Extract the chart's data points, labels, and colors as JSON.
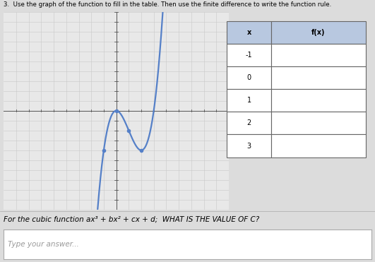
{
  "title": "3.  Use the graph of the function to fill in the table. Then use the finite difference to write the function rule.",
  "question_text": "For the cubic function ax³ + bx² + cx + d;  WHAT IS THE VALUE OF C?",
  "answer_placeholder": "Type your answer...",
  "xlim": [
    -9,
    9
  ],
  "ylim": [
    -10,
    10
  ],
  "x_ticks": [
    -8,
    -7,
    -6,
    -5,
    -4,
    -3,
    -2,
    -1,
    1,
    2,
    3,
    4,
    5,
    6,
    7,
    8
  ],
  "y_ticks": [
    -9,
    -8,
    -7,
    -6,
    -5,
    -4,
    -3,
    -2,
    -1,
    1,
    2,
    3,
    4,
    5,
    6,
    7,
    8,
    9,
    10
  ],
  "curve_color": "#5580c8",
  "grid_color": "#c8c8c8",
  "bg_color": "#dcdcdc",
  "graph_bg": "#e8e8e8",
  "table_x_values": [
    -1,
    0,
    1,
    2,
    3
  ],
  "table_headers": [
    "x",
    "f(x)"
  ],
  "coefficients": {
    "a": 1,
    "b": -3,
    "c": 0,
    "d": 0
  },
  "highlighted_points": [
    [
      -1,
      -4
    ],
    [
      0,
      0
    ],
    [
      1,
      -2
    ],
    [
      2,
      -4
    ]
  ],
  "fig_width": 5.31,
  "fig_height": 3.71,
  "title_fontsize": 6.2,
  "question_fontsize": 7.5,
  "table_fontsize": 7.0
}
